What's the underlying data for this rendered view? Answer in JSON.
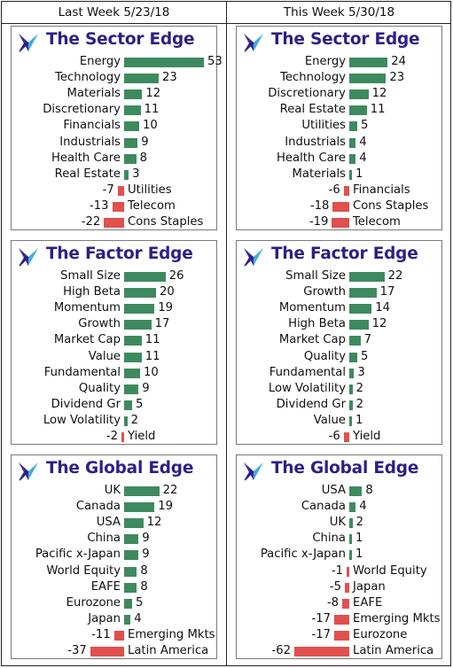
{
  "headers": {
    "left": "Last Week 5/23/18",
    "right": "This Week 5/30/18"
  },
  "colors": {
    "positive": "#3e8a5f",
    "negative": "#e0504d",
    "title": "#2e1f87"
  },
  "icons": {
    "logo": "compass-star-logo"
  },
  "chart_data": [
    {
      "type": "bar",
      "title": "The Sector Edge",
      "week": "Last Week 5/23/18",
      "categories": [
        "Energy",
        "Technology",
        "Materials",
        "Discretionary",
        "Financials",
        "Industrials",
        "Health Care",
        "Real Estate",
        "Utilities",
        "Telecom",
        "Cons Staples"
      ],
      "values": [
        53,
        23,
        12,
        11,
        10,
        9,
        8,
        3,
        -7,
        -13,
        -22
      ]
    },
    {
      "type": "bar",
      "title": "The Sector Edge",
      "week": "This Week 5/30/18",
      "categories": [
        "Energy",
        "Technology",
        "Discretionary",
        "Real Estate",
        "Utilities",
        "Industrials",
        "Health Care",
        "Materials",
        "Financials",
        "Cons Staples",
        "Telecom"
      ],
      "values": [
        24,
        23,
        12,
        11,
        5,
        4,
        4,
        1,
        -6,
        -18,
        -19
      ]
    },
    {
      "type": "bar",
      "title": "The Factor Edge",
      "week": "Last Week 5/23/18",
      "categories": [
        "Small Size",
        "High Beta",
        "Momentum",
        "Growth",
        "Market Cap",
        "Value",
        "Fundamental",
        "Quality",
        "Dividend Gr",
        "Low Volatility",
        "Yield"
      ],
      "values": [
        26,
        20,
        19,
        17,
        11,
        11,
        10,
        9,
        5,
        2,
        -2
      ]
    },
    {
      "type": "bar",
      "title": "The Factor Edge",
      "week": "This Week 5/30/18",
      "categories": [
        "Small Size",
        "Growth",
        "Momentum",
        "High Beta",
        "Market Cap",
        "Quality",
        "Fundamental",
        "Low Volatility",
        "Dividend Gr",
        "Value",
        "Yield"
      ],
      "values": [
        22,
        17,
        14,
        12,
        7,
        5,
        3,
        2,
        2,
        1,
        -6
      ]
    },
    {
      "type": "bar",
      "title": "The Global Edge",
      "week": "Last Week 5/23/18",
      "categories": [
        "UK",
        "Canada",
        "USA",
        "China",
        "Pacific x-Japan",
        "World Equity",
        "EAFE",
        "Eurozone",
        "Japan",
        "Emerging Mkts",
        "Latin America"
      ],
      "values": [
        22,
        19,
        12,
        9,
        9,
        8,
        8,
        5,
        4,
        -11,
        -37
      ]
    },
    {
      "type": "bar",
      "title": "The Global Edge",
      "week": "This Week 5/30/18",
      "categories": [
        "USA",
        "Canada",
        "UK",
        "China",
        "Pacific x-Japan",
        "World Equity",
        "Japan",
        "EAFE",
        "Emerging Mkts",
        "Eurozone",
        "Latin America"
      ],
      "values": [
        8,
        4,
        2,
        1,
        1,
        -1,
        -5,
        -8,
        -17,
        -17,
        -62
      ]
    }
  ]
}
